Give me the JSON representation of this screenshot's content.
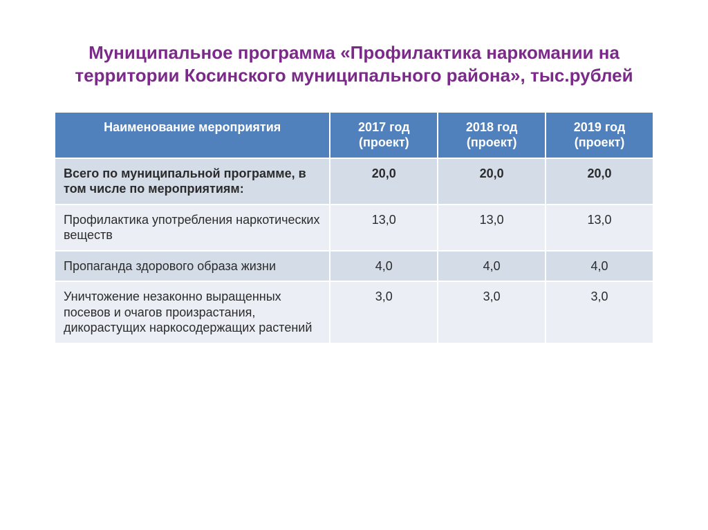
{
  "title": {
    "text": "Муниципальное программа «Профилактика наркомании на территории Косинского муниципального района», тыс.рублей",
    "color": "#7c2a8a",
    "fontsize": 26
  },
  "table": {
    "header_bg": "#5181bc",
    "header_color": "#ffffff",
    "row_alt_bg_a": "#d4dce8",
    "row_alt_bg_b": "#ebeef5",
    "border_color": "#ffffff",
    "cell_fontsize": 18,
    "cell_color": "#2b2b2b",
    "columns": [
      "Наименование     мероприятия",
      "2017 год (проект)",
      "2018 год (проект)",
      "2019 год (проект)"
    ],
    "rows": [
      {
        "label": "Всего по муниципальной программе, в том числе по мероприятиям:",
        "values": [
          "20,0",
          "20,0",
          "20,0"
        ],
        "bold": true
      },
      {
        "label": "Профилактика употребления наркотических веществ",
        "values": [
          "13,0",
          "13,0",
          "13,0"
        ],
        "bold": false
      },
      {
        "label": "Пропаганда здорового образа жизни",
        "values": [
          "4,0",
          "4,0",
          "4,0"
        ],
        "bold": false
      },
      {
        "label": "Уничтожение незаконно выращенных посевов и очагов произрастания, дикорастущих наркосодержащих растений",
        "values": [
          "3,0",
          "3,0",
          "3,0"
        ],
        "bold": false
      }
    ]
  }
}
